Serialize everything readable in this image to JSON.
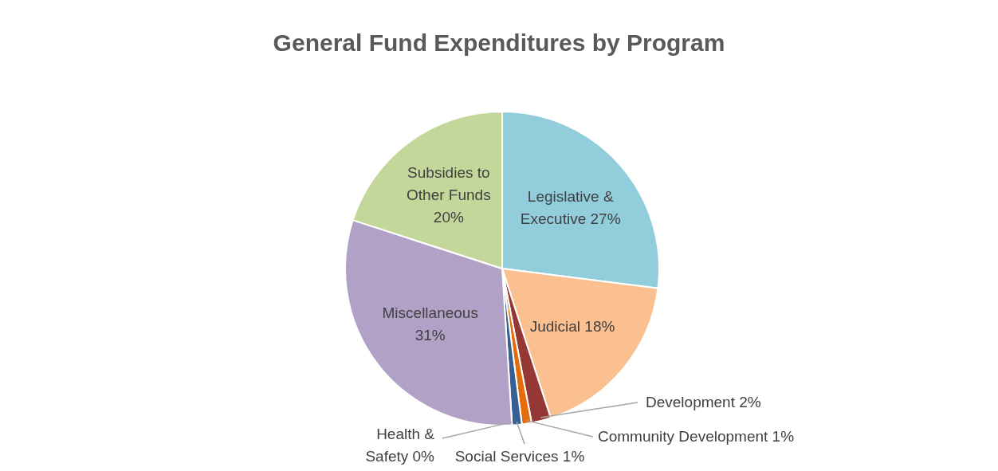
{
  "chart_data": {
    "type": "pie",
    "title": "General Fund Expenditures by Program",
    "categories": [
      "Legislative & Executive",
      "Judicial",
      "Development",
      "Community Development",
      "Social Services",
      "Health & Safety",
      "Miscellaneous",
      "Subsidies to Other Funds"
    ],
    "values": [
      27,
      18,
      2,
      1,
      1,
      0,
      31,
      20
    ],
    "value_labels": [
      "27%",
      "18%",
      "2%",
      "1%",
      "1%",
      "0%",
      "31%",
      "20%"
    ],
    "colors": [
      "#92cddc",
      "#fac090",
      "#953735",
      "#e46c0a",
      "#376092",
      "#b9a7cf",
      "#b2a1c7",
      "#c4d79b"
    ]
  }
}
